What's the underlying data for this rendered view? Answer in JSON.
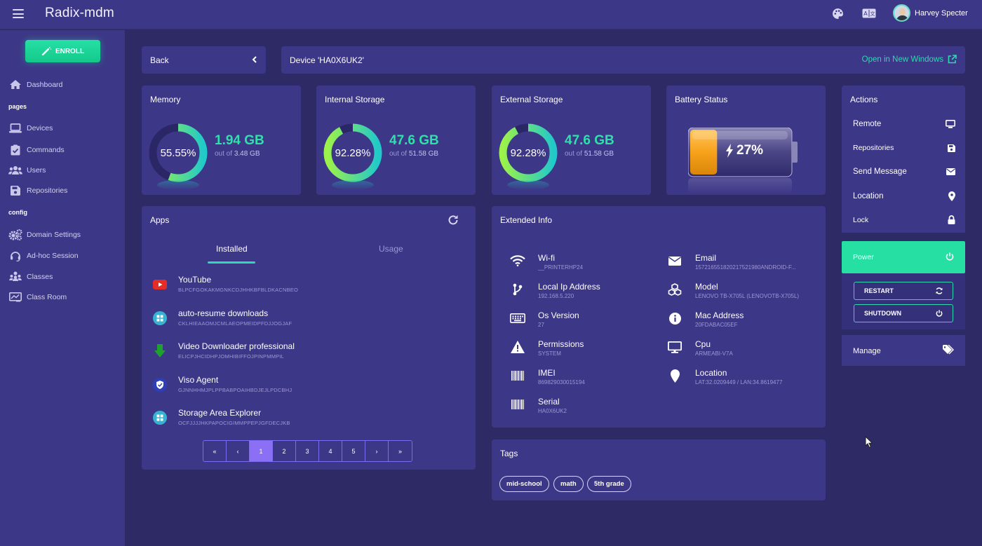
{
  "app": {
    "title": "Radix-mdm"
  },
  "user": {
    "name": "Harvey Specter"
  },
  "sidebar": {
    "enroll_label": "ENROLL",
    "sections": {
      "pages": "pages",
      "config": "config"
    },
    "items": [
      {
        "label": "Dashboard",
        "icon": "home-icon"
      },
      {
        "label": "Devices",
        "icon": "laptop-icon"
      },
      {
        "label": "Commands",
        "icon": "clipboard-check-icon"
      },
      {
        "label": "Users",
        "icon": "users-icon"
      },
      {
        "label": "Repositories",
        "icon": "save-icon"
      },
      {
        "label": "Domain Settings",
        "icon": "cogs-icon"
      },
      {
        "label": "Ad-hoc Session",
        "icon": "headset-icon"
      },
      {
        "label": "Classes",
        "icon": "sitemap-icon"
      },
      {
        "label": "Class Room",
        "icon": "chalkboard-icon"
      }
    ]
  },
  "header": {
    "back_label": "Back",
    "device_title": "Device 'HA0X6UK2'",
    "open_new_label": "Open in New Windows"
  },
  "metrics": {
    "memory": {
      "title": "Memory",
      "percent_label": "55.55%",
      "percent": 55.55,
      "value": "1.94 GB",
      "out_of_prefix": "out of",
      "total": "3.48 GB"
    },
    "internal": {
      "title": "Internal Storage",
      "percent_label": "92.28%",
      "percent": 92.28,
      "value": "47.6 GB",
      "out_of_prefix": "out of",
      "total": "51.58 GB"
    },
    "external": {
      "title": "External Storage",
      "percent_label": "92.28%",
      "percent": 92.28,
      "value": "47.6 GB",
      "out_of_prefix": "out of",
      "total": "51.58 GB"
    },
    "battery": {
      "title": "Battery Status",
      "percent_label": "27%",
      "percent": 27
    }
  },
  "actions": {
    "title": "Actions",
    "items": [
      {
        "label": "Remote",
        "icon": "desktop-icon"
      },
      {
        "label": "Repositories",
        "icon": "save-icon"
      },
      {
        "label": "Send Message",
        "icon": "envelope-icon"
      },
      {
        "label": "Location",
        "icon": "map-marker-icon"
      },
      {
        "label": "Lock",
        "icon": "lock-icon"
      }
    ],
    "power_label": "Power",
    "restart_label": "RESTART",
    "shutdown_label": "SHUTDOWN",
    "manage_label": "Manage"
  },
  "apps": {
    "title": "Apps",
    "tabs": [
      "Installed",
      "Usage"
    ],
    "list": [
      {
        "name": "YouTube",
        "package": "BLPCFGOKAKMGNKCDJHHKBFBLDKACNBEO"
      },
      {
        "name": "auto-resume downloads",
        "package": "CKLHIEAAOMJCMLAEOPMEIDPFDJJOGJAF"
      },
      {
        "name": "Video Downloader professional",
        "package": "ELICPJHCIDHPJOMHIBIFFOJPINPMMPIL"
      },
      {
        "name": "Viso Agent",
        "package": "GJNNHHMJPLPPBABPOAIHBDJEJLPDCBHJ"
      },
      {
        "name": "Storage Area Explorer",
        "package": "OCFJJJJHKPAPOCIGIMMPPEPJGFDECJKB"
      }
    ],
    "pager": [
      "«",
      "‹",
      "1",
      "2",
      "3",
      "4",
      "5",
      "›",
      "»"
    ],
    "active_page": "1"
  },
  "extended": {
    "title": "Extended Info",
    "left": [
      {
        "key": "Wi-fi",
        "value": "__PRINTERHP24",
        "icon": "wifi-icon"
      },
      {
        "key": "Local Ip Address",
        "value": "192.168.5.220",
        "icon": "code-branch-icon"
      },
      {
        "key": "Os Version",
        "value": "27",
        "icon": "keyboard-icon"
      },
      {
        "key": "Permissions",
        "value": "SYSTEM",
        "icon": "warning-icon"
      },
      {
        "key": "IMEI",
        "value": "869829030015194",
        "icon": "barcode-icon"
      },
      {
        "key": "Serial",
        "value": "HA0X6UK2",
        "icon": "barcode-icon"
      }
    ],
    "right": [
      {
        "key": "Email",
        "value": "157216551820217521980ANDROID-F...",
        "icon": "envelope-icon"
      },
      {
        "key": "Model",
        "value": "LENOVO TB-X705L (LENOVOTB-X705L)",
        "icon": "cubes-icon"
      },
      {
        "key": "Mac Address",
        "value": "20FDABAC05EF",
        "icon": "info-icon"
      },
      {
        "key": "Cpu",
        "value": "ARMEABI-V7A",
        "icon": "monitor-icon"
      },
      {
        "key": "Location",
        "value": "LAT:32.0209449 / LAN:34.8619477",
        "icon": "map-pin-icon"
      }
    ]
  },
  "tags": {
    "title": "Tags",
    "items": [
      "mid-school",
      "math",
      "5th grade"
    ]
  },
  "colors": {
    "accent": "#2ed8b0",
    "panel": "#3d3787",
    "background": "#2e2a66",
    "battery": "#f7a21b"
  }
}
